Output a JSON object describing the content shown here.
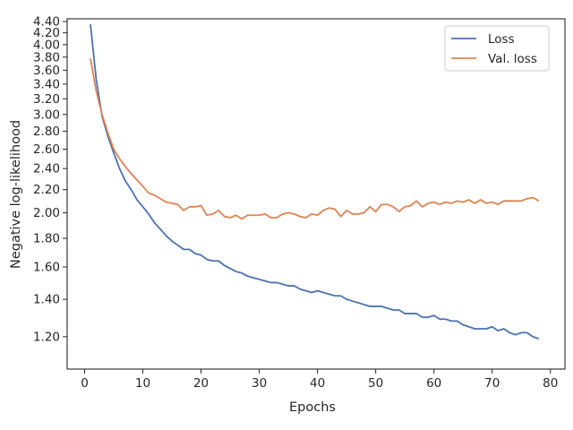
{
  "chart_data": {
    "type": "line",
    "title": "",
    "xlabel": "Epochs",
    "ylabel": "Negative log-likelihood",
    "xlim": [
      -3,
      82.5
    ],
    "ylim": [
      1.05,
      4.45
    ],
    "y_scale": "log",
    "x_ticks": [
      0,
      10,
      20,
      30,
      40,
      50,
      60,
      70,
      80
    ],
    "x_tick_labels": [
      "0",
      "10",
      "20",
      "30",
      "40",
      "50",
      "60",
      "70",
      "80"
    ],
    "y_ticks": [
      1.2,
      1.4,
      1.6,
      1.8,
      2.0,
      2.2,
      2.4,
      2.6,
      2.8,
      3.0,
      3.2,
      3.4,
      3.6,
      3.8,
      4.0,
      4.2,
      4.4
    ],
    "y_tick_labels": [
      "1.20",
      "1.40",
      "1.60",
      "1.80",
      "2.00",
      "2.20",
      "2.40",
      "2.60",
      "2.80",
      "3.00",
      "3.20",
      "3.40",
      "3.60",
      "3.80",
      "4.00",
      "4.20",
      "4.40"
    ],
    "grid": false,
    "legend_position": "top-right",
    "x": [
      1,
      2,
      3,
      4,
      5,
      6,
      7,
      8,
      9,
      10,
      11,
      12,
      13,
      14,
      15,
      16,
      17,
      18,
      19,
      20,
      21,
      22,
      23,
      24,
      25,
      26,
      27,
      28,
      29,
      30,
      31,
      32,
      33,
      34,
      35,
      36,
      37,
      38,
      39,
      40,
      41,
      42,
      43,
      44,
      45,
      46,
      47,
      48,
      49,
      50,
      51,
      52,
      53,
      54,
      55,
      56,
      57,
      58,
      59,
      60,
      61,
      62,
      63,
      64,
      65,
      66,
      67,
      68,
      69,
      70,
      71,
      72,
      73,
      74,
      75,
      76,
      77,
      78
    ],
    "series": [
      {
        "name": "Loss",
        "color": "#4c72b0",
        "values": [
          4.35,
          3.46,
          2.98,
          2.74,
          2.56,
          2.4,
          2.28,
          2.2,
          2.11,
          2.05,
          1.99,
          1.92,
          1.87,
          1.82,
          1.78,
          1.75,
          1.72,
          1.72,
          1.69,
          1.68,
          1.65,
          1.64,
          1.64,
          1.61,
          1.59,
          1.57,
          1.56,
          1.54,
          1.53,
          1.52,
          1.51,
          1.5,
          1.5,
          1.49,
          1.48,
          1.48,
          1.46,
          1.45,
          1.44,
          1.45,
          1.44,
          1.43,
          1.42,
          1.42,
          1.4,
          1.39,
          1.38,
          1.37,
          1.36,
          1.36,
          1.36,
          1.35,
          1.34,
          1.34,
          1.32,
          1.32,
          1.32,
          1.3,
          1.3,
          1.31,
          1.29,
          1.29,
          1.28,
          1.28,
          1.26,
          1.25,
          1.24,
          1.24,
          1.24,
          1.25,
          1.23,
          1.24,
          1.22,
          1.21,
          1.22,
          1.22,
          1.2,
          1.19
        ]
      },
      {
        "name": "Val. loss",
        "color": "#dd8452",
        "values": [
          3.78,
          3.3,
          3.0,
          2.78,
          2.6,
          2.5,
          2.42,
          2.35,
          2.29,
          2.23,
          2.17,
          2.15,
          2.12,
          2.09,
          2.08,
          2.07,
          2.02,
          2.05,
          2.05,
          2.06,
          1.98,
          1.99,
          2.02,
          1.97,
          1.96,
          1.98,
          1.95,
          1.98,
          1.98,
          1.98,
          1.99,
          1.96,
          1.96,
          1.99,
          2.0,
          1.99,
          1.97,
          1.96,
          1.99,
          1.98,
          2.02,
          2.04,
          2.03,
          1.97,
          2.02,
          1.99,
          1.99,
          2.0,
          2.05,
          2.01,
          2.07,
          2.07,
          2.05,
          2.01,
          2.05,
          2.06,
          2.1,
          2.05,
          2.08,
          2.09,
          2.07,
          2.09,
          2.08,
          2.1,
          2.09,
          2.11,
          2.08,
          2.11,
          2.08,
          2.09,
          2.07,
          2.1,
          2.1,
          2.1,
          2.1,
          2.12,
          2.13,
          2.1
        ]
      }
    ]
  }
}
